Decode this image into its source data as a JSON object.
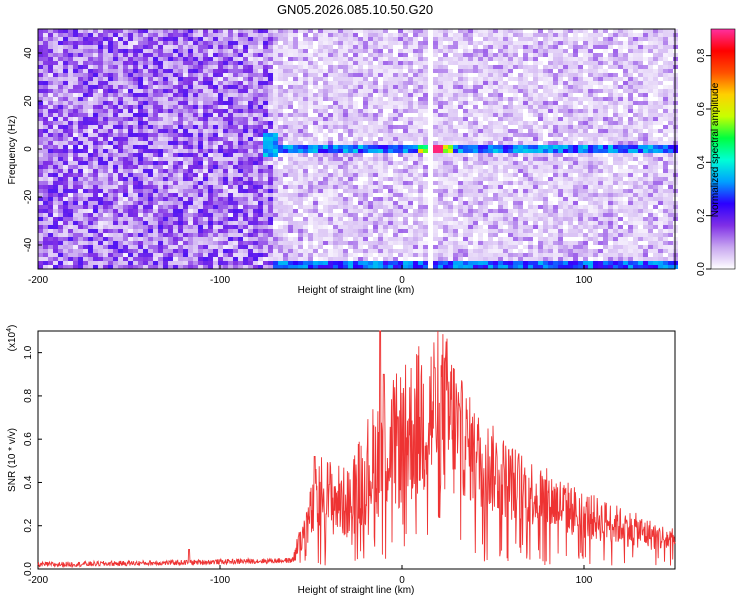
{
  "title": "GN05.2026.085.10.50.G20",
  "chart_data": [
    {
      "type": "heatmap",
      "xlabel": "Height of straight line (km)",
      "ylabel": "Frequency (Hz)",
      "xlim": [
        -200,
        150
      ],
      "ylim": [
        -50,
        50
      ],
      "xticks": [
        -200,
        -100,
        0,
        100
      ],
      "yticks": [
        -40,
        -20,
        0,
        20,
        40
      ],
      "colorbar": {
        "label": "Normalized spectral amplitude",
        "range": [
          0,
          0.9
        ],
        "ticks": [
          "0.0",
          "0.2",
          "0.4",
          "0.6",
          "0.8"
        ],
        "colormap": [
          "#ffffff",
          "#c8a6f0",
          "#7f2fe6",
          "#2b00ff",
          "#00a0ff",
          "#00ffd5",
          "#00ff40",
          "#c8ff00",
          "#ffd000",
          "#ff5000",
          "#ff0000",
          "#ff2fa0"
        ]
      },
      "features": {
        "dense_noise_region_x": [
          -200,
          -70
        ],
        "horizontal_line_y": 0,
        "horizontal_line_x": [
          -70,
          150
        ],
        "bottom_line_y": -49,
        "gap_x": 16,
        "peak_x": 18
      }
    },
    {
      "type": "line",
      "xlabel": "Height of straight line (km)",
      "ylabel": "SNR (10 * v/v)",
      "yscale_label": "(x10",
      "yscale_exp": "4",
      "xlim": [
        -200,
        150
      ],
      "ylim": [
        0,
        1.1
      ],
      "xticks": [
        -200,
        -100,
        0,
        100
      ],
      "yticks": [
        "0.0",
        "0.2",
        "0.4",
        "0.6",
        "0.8",
        "1.0"
      ],
      "series": [
        {
          "color": "#ee3333",
          "envelope_points": [
            {
              "x": -200,
              "y": 0.02
            },
            {
              "x": -120,
              "y": 0.03
            },
            {
              "x": -60,
              "y": 0.04
            },
            {
              "x": -55,
              "y": 0.15
            },
            {
              "x": -45,
              "y": 0.35
            },
            {
              "x": -30,
              "y": 0.3
            },
            {
              "x": -20,
              "y": 0.45
            },
            {
              "x": -10,
              "y": 0.55
            },
            {
              "x": 0,
              "y": 0.6
            },
            {
              "x": 10,
              "y": 0.68
            },
            {
              "x": 20,
              "y": 0.75
            },
            {
              "x": 25,
              "y": 0.7
            },
            {
              "x": 40,
              "y": 0.52
            },
            {
              "x": 60,
              "y": 0.4
            },
            {
              "x": 80,
              "y": 0.32
            },
            {
              "x": 100,
              "y": 0.25
            },
            {
              "x": 120,
              "y": 0.2
            },
            {
              "x": 140,
              "y": 0.15
            },
            {
              "x": 150,
              "y": 0.13
            }
          ],
          "spikes": [
            {
              "x": -117,
              "y": 0.09
            },
            {
              "x": -48,
              "y": 0.52
            },
            {
              "x": -12,
              "y": 1.1
            },
            {
              "x": -10,
              "y": 0.9
            },
            {
              "x": 18,
              "y": 0.93
            }
          ]
        }
      ]
    }
  ]
}
